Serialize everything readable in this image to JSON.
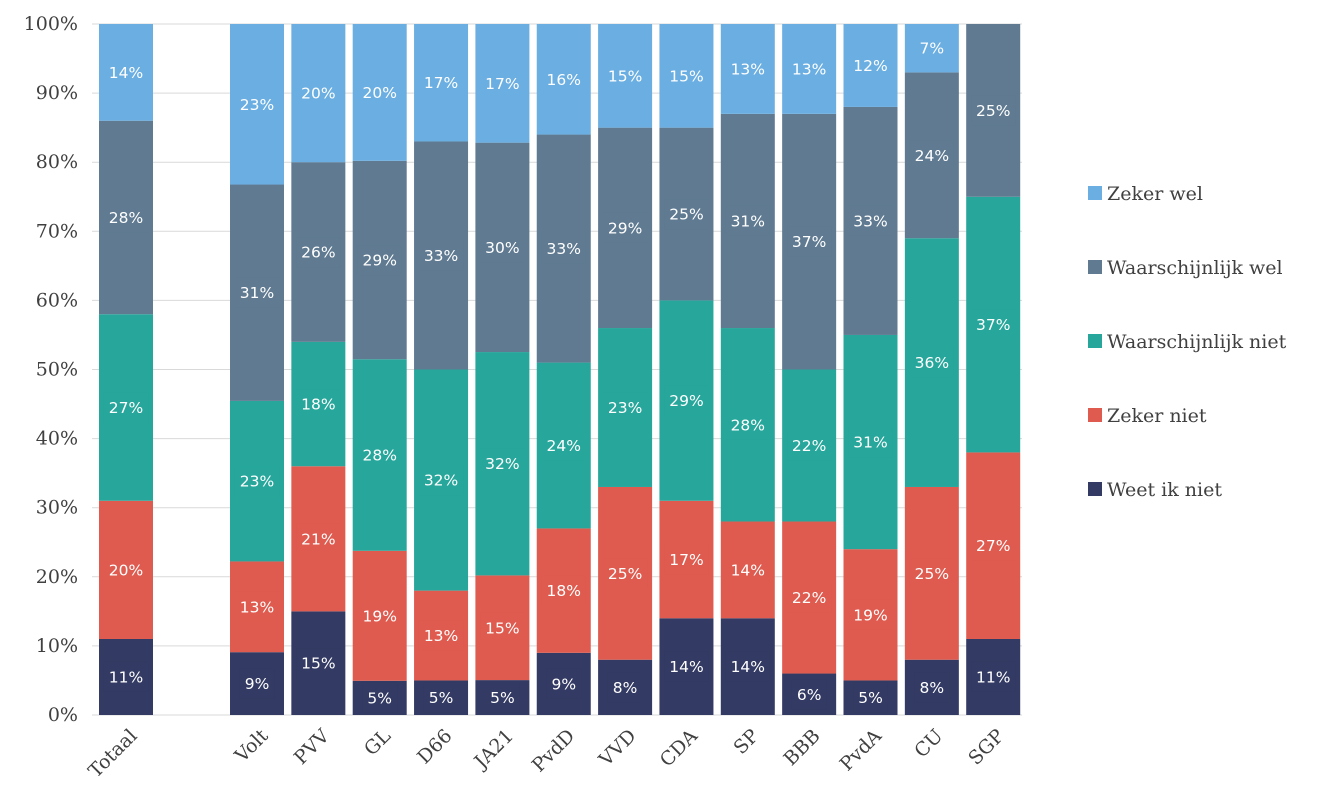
{
  "chart_data": {
    "type": "bar",
    "stacked": true,
    "normalized": true,
    "categories": [
      "Totaal",
      "Volt",
      "PVV",
      "GL",
      "D66",
      "JA21",
      "PvdD",
      "VVD",
      "CDA",
      "SP",
      "BBB",
      "PvdA",
      "CU",
      "SGP"
    ],
    "gap_after_first_category": true,
    "series": [
      {
        "name": "Weet ik niet",
        "color": "#333a63",
        "values": [
          11,
          9,
          15,
          5,
          5,
          5,
          9,
          8,
          14,
          14,
          6,
          5,
          8,
          11
        ]
      },
      {
        "name": "Zeker niet",
        "color": "#df5b4f",
        "values": [
          20,
          13,
          21,
          19,
          13,
          15,
          18,
          25,
          17,
          14,
          22,
          19,
          25,
          27
        ]
      },
      {
        "name": "Waarschijnlijk niet",
        "color": "#27a79b",
        "values": [
          27,
          23,
          18,
          28,
          32,
          32,
          24,
          23,
          29,
          28,
          22,
          31,
          36,
          37
        ]
      },
      {
        "name": "Waarschijnlijk wel",
        "color": "#5f7a91",
        "values": [
          28,
          31,
          26,
          29,
          33,
          30,
          33,
          29,
          25,
          31,
          37,
          33,
          24,
          25
        ]
      },
      {
        "name": "Zeker wel",
        "color": "#6aaee2",
        "values": [
          14,
          23,
          20,
          20,
          17,
          17,
          16,
          15,
          15,
          13,
          13,
          12,
          7,
          0
        ]
      }
    ],
    "data_labels": {
      "Weet ik niet": [
        "11%",
        "9%",
        "15%",
        "5%",
        "5%",
        "5%",
        "9%",
        "8%",
        "14%",
        "14%",
        "6%",
        "5%",
        "8%",
        "11%"
      ],
      "Zeker niet": [
        "20%",
        "13%",
        "21%",
        "19%",
        "13%",
        "15%",
        "18%",
        "25%",
        "17%",
        "14%",
        "22%",
        "19%",
        "25%",
        "27%"
      ],
      "Waarschijnlijk niet": [
        "27%",
        "23%",
        "18%",
        "28%",
        "32%",
        "32%",
        "24%",
        "23%",
        "29%",
        "28%",
        "22%",
        "31%",
        "36%",
        "37%"
      ],
      "Waarschijnlijk wel": [
        "28%",
        "31%",
        "26%",
        "29%",
        "33%",
        "30%",
        "33%",
        "29%",
        "25%",
        "31%",
        "37%",
        "33%",
        "24%",
        "25%"
      ],
      "Zeker wel": [
        "14%",
        "23%",
        "20%",
        "20%",
        "17%",
        "17%",
        "16%",
        "15%",
        "15%",
        "13%",
        "13%",
        "12%",
        "7%",
        ""
      ]
    },
    "y_ticks": [
      "0%",
      "10%",
      "20%",
      "30%",
      "40%",
      "50%",
      "60%",
      "70%",
      "80%",
      "90%",
      "100%"
    ],
    "ylim": [
      0,
      100
    ],
    "grid": true,
    "legend_position": "right",
    "legend_order": [
      "Zeker wel",
      "Waarschijnlijk wel",
      "Waarschijnlijk niet",
      "Zeker niet",
      "Weet ik niet"
    ]
  }
}
